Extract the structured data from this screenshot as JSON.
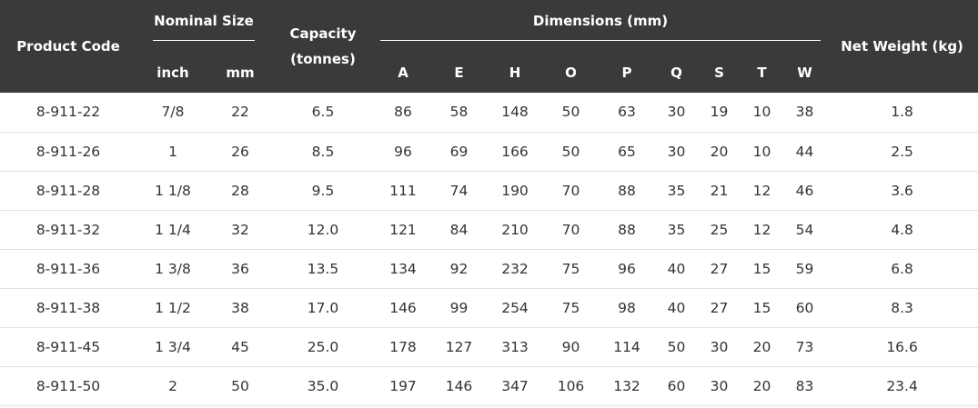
{
  "header": {
    "product_code": "Product Code",
    "nominal_size": "Nominal Size",
    "inch": "inch",
    "mm": "mm",
    "capacity_line1": "Capacity",
    "capacity_line2": "(tonnes)",
    "dimensions": "Dimensions (mm)",
    "dim_cols": [
      "A",
      "E",
      "H",
      "O",
      "P",
      "Q",
      "S",
      "T",
      "W"
    ],
    "net_weight": "Net Weight (kg)"
  },
  "rows": [
    [
      "8-911-22",
      "7/8",
      "22",
      "6.5",
      "86",
      "58",
      "148",
      "50",
      "63",
      "30",
      "19",
      "10",
      "38",
      "1.8"
    ],
    [
      "8-911-26",
      "1",
      "26",
      "8.5",
      "96",
      "69",
      "166",
      "50",
      "65",
      "30",
      "20",
      "10",
      "44",
      "2.5"
    ],
    [
      "8-911-28",
      "1 1/8",
      "28",
      "9.5",
      "111",
      "74",
      "190",
      "70",
      "88",
      "35",
      "21",
      "12",
      "46",
      "3.6"
    ],
    [
      "8-911-32",
      "1 1/4",
      "32",
      "12.0",
      "121",
      "84",
      "210",
      "70",
      "88",
      "35",
      "25",
      "12",
      "54",
      "4.8"
    ],
    [
      "8-911-36",
      "1 3/8",
      "36",
      "13.5",
      "134",
      "92",
      "232",
      "75",
      "96",
      "40",
      "27",
      "15",
      "59",
      "6.8"
    ],
    [
      "8-911-38",
      "1 1/2",
      "38",
      "17.0",
      "146",
      "99",
      "254",
      "75",
      "98",
      "40",
      "27",
      "15",
      "60",
      "8.3"
    ],
    [
      "8-911-45",
      "1 3/4",
      "45",
      "25.0",
      "178",
      "127",
      "313",
      "90",
      "114",
      "50",
      "30",
      "20",
      "73",
      "16.6"
    ],
    [
      "8-911-50",
      "2",
      "50",
      "35.0",
      "197",
      "146",
      "347",
      "106",
      "132",
      "60",
      "30",
      "20",
      "83",
      "23.4"
    ]
  ]
}
